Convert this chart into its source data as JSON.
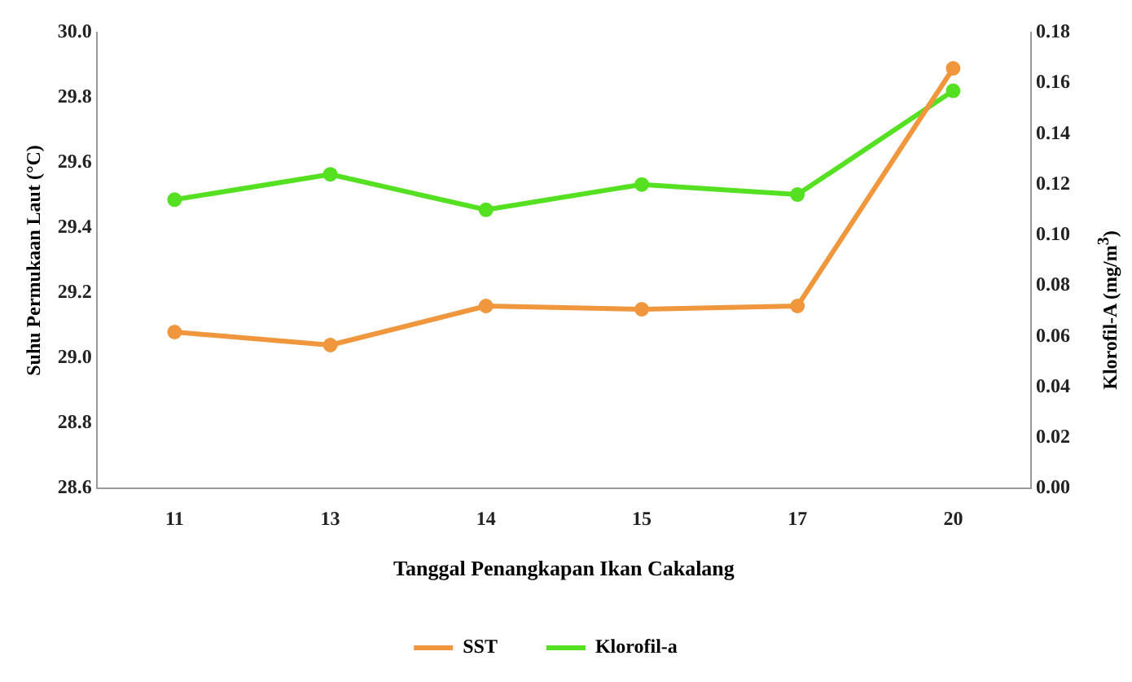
{
  "chart_data": {
    "type": "line",
    "xlabel": "Tanggal Penangkapan Ikan Cakalang",
    "ylabel": "Suhu Permukaan Laut (°C)",
    "y2label": "Klorofil-A (mg/m$^{3}$)",
    "categories": [
      "11",
      "13",
      "14",
      "15",
      "17",
      "20"
    ],
    "series": [
      {
        "name": "SST",
        "color": "#f0963c",
        "values": [
          29.08,
          29.04,
          29.16,
          29.15,
          29.16,
          29.89
        ]
      },
      {
        "name": "Klorofil-a",
        "color": "#55e021",
        "axis": "y2",
        "values": [
          0.114,
          0.124,
          0.11,
          0.12,
          0.116,
          0.157
        ]
      }
    ],
    "ylim": [
      28.6,
      30.0
    ],
    "yticks": [
      {
        "value": 28.6,
        "label": "28.6"
      },
      {
        "value": 28.8,
        "label": "28.8"
      },
      {
        "value": 29.0,
        "label": "29.0"
      },
      {
        "value": 29.2,
        "label": "29.2"
      },
      {
        "value": 29.4,
        "label": "29.4"
      },
      {
        "value": 29.6,
        "label": "29.6"
      },
      {
        "value": 29.8,
        "label": "29.8"
      },
      {
        "value": 30.0,
        "label": "30.0"
      }
    ],
    "y2lim": [
      0,
      0.18
    ],
    "y2ticks": [
      {
        "value": 0,
        "label": "0.00"
      },
      {
        "value": 0.02,
        "label": "0.02"
      },
      {
        "value": 0.04,
        "label": "0.04"
      },
      {
        "value": 0.06,
        "label": "0.06"
      },
      {
        "value": 0.08,
        "label": "0.08"
      },
      {
        "value": 0.1,
        "label": "0.10"
      },
      {
        "value": 0.12,
        "label": "0.12"
      },
      {
        "value": 0.14,
        "label": "0.14"
      },
      {
        "value": 0.16,
        "label": "0.16"
      },
      {
        "value": 0.18,
        "label": "0.18"
      }
    ],
    "grid": false,
    "legend": "bottom",
    "marker": "circle"
  }
}
